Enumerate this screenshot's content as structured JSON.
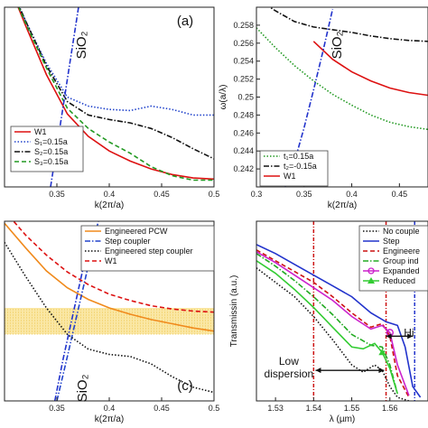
{
  "chart_data": [
    {
      "panel": "a",
      "type": "line",
      "tag": "(a)",
      "xlabel": "k(2π/a)",
      "ylabel": "",
      "xlim": [
        0.3,
        0.5
      ],
      "ylim": [
        0.243,
        0.259
      ],
      "xticks": [
        "0.35",
        "0.4",
        "0.45",
        "0.5"
      ],
      "yticks": [],
      "legend_position": "lower-left",
      "annotations": [
        {
          "text": "SiO₂",
          "x": 0.357,
          "y": 0.2552
        }
      ],
      "series": [
        {
          "name": "W1",
          "color": "#dd1111",
          "dash": "solid",
          "x": [
            0.3,
            0.32,
            0.34,
            0.36,
            0.38,
            0.4,
            0.42,
            0.44,
            0.46,
            0.48,
            0.5
          ],
          "y": [
            0.262,
            0.2574,
            0.253,
            0.2495,
            0.2475,
            0.2462,
            0.2453,
            0.2446,
            0.2441,
            0.2438,
            0.2437
          ]
        },
        {
          "name": "S₁=0.15a",
          "color": "#2244cc",
          "dash": "dotted",
          "x": [
            0.3,
            0.32,
            0.34,
            0.36,
            0.38,
            0.4,
            0.42,
            0.44,
            0.46,
            0.48,
            0.5
          ],
          "y": [
            0.262,
            0.2578,
            0.254,
            0.251,
            0.2502,
            0.2499,
            0.2498,
            0.2502,
            0.2499,
            0.2494,
            0.2494
          ]
        },
        {
          "name": "S₂=0.15a",
          "color": "#111111",
          "dash": "dashdot",
          "x": [
            0.3,
            0.32,
            0.34,
            0.36,
            0.38,
            0.4,
            0.42,
            0.44,
            0.46,
            0.48,
            0.5
          ],
          "y": [
            0.262,
            0.2578,
            0.2538,
            0.2506,
            0.2494,
            0.249,
            0.2487,
            0.2482,
            0.2474,
            0.2464,
            0.2455
          ]
        },
        {
          "name": "S₃=0.15a",
          "color": "#229922",
          "dash": "dashed",
          "x": [
            0.3,
            0.32,
            0.34,
            0.36,
            0.38,
            0.4,
            0.42,
            0.44,
            0.46,
            0.48,
            0.5
          ],
          "y": [
            0.262,
            0.2576,
            0.2536,
            0.25,
            0.2482,
            0.247,
            0.246,
            0.2448,
            0.244,
            0.2436,
            0.2436
          ]
        },
        {
          "name": "",
          "color": "#2233cc",
          "dash": "dashdot",
          "x": [
            0.344,
            0.35,
            0.356,
            0.362,
            0.368,
            0.374
          ],
          "y": [
            0.243,
            0.2466,
            0.2502,
            0.2538,
            0.2574,
            0.261
          ]
        }
      ]
    },
    {
      "panel": "b",
      "type": "line",
      "tag": "",
      "xlabel": "k(2π/a)",
      "ylabel": "ω(a/λ)",
      "xlim": [
        0.3,
        0.48
      ],
      "ylim": [
        0.24,
        0.26
      ],
      "xticks": [
        "0.3",
        "0.35",
        "0.4",
        "0.45"
      ],
      "yticks": [
        "0.242",
        "0.244",
        "0.246",
        "0.248",
        "0.25",
        "0.252",
        "0.254",
        "0.256",
        "0.258"
      ],
      "legend_position": "lower-left",
      "annotations": [
        {
          "text": "SiO₂",
          "x": 0.356,
          "y": 0.2565
        }
      ],
      "series": [
        {
          "name": "t₁=0.15a",
          "color": "#229922",
          "dash": "dotted",
          "x": [
            0.3,
            0.32,
            0.34,
            0.36,
            0.38,
            0.4,
            0.42,
            0.44,
            0.46,
            0.48
          ],
          "y": [
            0.2577,
            0.2555,
            0.2535,
            0.2518,
            0.2503,
            0.2491,
            0.248,
            0.2472,
            0.2467,
            0.2464
          ]
        },
        {
          "name": "t₂=-0.15a",
          "color": "#111111",
          "dash": "dashdot",
          "x": [
            0.3,
            0.32,
            0.34,
            0.36,
            0.38,
            0.4,
            0.42,
            0.44,
            0.46,
            0.48
          ],
          "y": [
            0.261,
            0.2596,
            0.2584,
            0.2578,
            0.2575,
            0.2572,
            0.2568,
            0.2565,
            0.2563,
            0.2562
          ]
        },
        {
          "name": "W1",
          "color": "#dd1111",
          "dash": "solid",
          "x": [
            0.36,
            0.38,
            0.4,
            0.42,
            0.44,
            0.46,
            0.48
          ],
          "y": [
            0.2562,
            0.2542,
            0.2528,
            0.2518,
            0.251,
            0.2505,
            0.2502
          ]
        },
        {
          "name": "",
          "color": "#2233cc",
          "dash": "dashdot",
          "x": [
            0.33,
            0.34,
            0.35,
            0.36,
            0.37,
            0.38
          ],
          "y": [
            0.24,
            0.2428,
            0.2466,
            0.2508,
            0.2552,
            0.2598
          ]
        }
      ]
    },
    {
      "panel": "c",
      "type": "line",
      "tag": "(c)",
      "xlabel": "k(2π/a)",
      "ylabel": "",
      "xlim": [
        0.3,
        0.5
      ],
      "ylim": [
        0.243,
        0.26
      ],
      "xticks": [
        "0.35",
        "0.4",
        "0.45",
        "0.5"
      ],
      "yticks": [],
      "legend_position": "top-right",
      "band": {
        "ymin": 0.2493,
        "ymax": 0.2518,
        "color": "#f5d35a"
      },
      "annotations": [
        {
          "text": "SiO₂",
          "x": 0.362,
          "y": 0.2445
        }
      ],
      "series": [
        {
          "name": "Engineered PCW",
          "color": "#f08a1c",
          "dash": "solid",
          "x": [
            0.3,
            0.32,
            0.34,
            0.36,
            0.38,
            0.4,
            0.42,
            0.44,
            0.46,
            0.48,
            0.5
          ],
          "y": [
            0.2598,
            0.2575,
            0.2553,
            0.2537,
            0.2526,
            0.2518,
            0.2512,
            0.2507,
            0.2503,
            0.2499,
            0.2496
          ]
        },
        {
          "name": "Step coupler",
          "color": "#2244cc",
          "dash": "dashdot",
          "x": [
            0.35,
            0.36,
            0.37,
            0.38,
            0.39
          ],
          "y": [
            0.243,
            0.2472,
            0.2515,
            0.2558,
            0.2602
          ]
        },
        {
          "name": "Engineered step coupler",
          "color": "#111111",
          "dash": "dotted",
          "x": [
            0.3,
            0.32,
            0.34,
            0.36,
            0.38,
            0.4,
            0.42,
            0.44,
            0.46,
            0.48,
            0.5
          ],
          "y": [
            0.258,
            0.2548,
            0.2518,
            0.2493,
            0.2479,
            0.2474,
            0.2472,
            0.2465,
            0.2453,
            0.2443,
            0.2438
          ]
        },
        {
          "name": "W1",
          "color": "#dd1111",
          "dash": "dashed",
          "x": [
            0.3,
            0.32,
            0.34,
            0.36,
            0.38,
            0.4,
            0.42,
            0.44,
            0.46,
            0.48,
            0.5
          ],
          "y": [
            0.261,
            0.2587,
            0.2568,
            0.2552,
            0.254,
            0.2531,
            0.2525,
            0.252,
            0.2517,
            0.2515,
            0.2514
          ]
        },
        {
          "name": "",
          "color": "#2233cc",
          "dash": "dashdot",
          "x": [
            0.348,
            0.356,
            0.366,
            0.376
          ],
          "y": [
            0.243,
            0.247,
            0.2515,
            0.256
          ]
        }
      ]
    },
    {
      "panel": "d",
      "type": "line",
      "tag": "",
      "xlabel": "λ (µm)",
      "ylabel": "Transmissin (a.u.)",
      "xlim": [
        1.525,
        1.57
      ],
      "ylim": [
        0,
        1
      ],
      "xticks": [
        "1.53",
        "1.54",
        "1.55",
        "1.56"
      ],
      "yticks": [],
      "legend_position": "top-right",
      "vlines": [
        {
          "x": 1.54,
          "color": "#cc1111"
        },
        {
          "x": 1.559,
          "color": "#cc1111"
        },
        {
          "x": 1.5665,
          "color": "#2233cc"
        }
      ],
      "annotations": [
        {
          "text": "Low",
          "x": 1.5335,
          "y": 0.2
        },
        {
          "text": "dispersion",
          "x": 1.5335,
          "y": 0.13
        },
        {
          "text": "Hi",
          "x": 1.565,
          "y": 0.36
        }
      ],
      "arrows": [
        {
          "x1": 1.5405,
          "x2": 1.5585,
          "y": 0.17
        },
        {
          "x1": 1.559,
          "x2": 1.566,
          "y": 0.36
        }
      ],
      "series": [
        {
          "name": "No couple",
          "color": "#111111",
          "dash": "dotted",
          "x": [
            1.525,
            1.53,
            1.535,
            1.54,
            1.545,
            1.55,
            1.553,
            1.556,
            1.558,
            1.56,
            1.562,
            1.565
          ],
          "y": [
            0.74,
            0.66,
            0.58,
            0.47,
            0.34,
            0.2,
            0.16,
            0.2,
            0.17,
            0.08,
            0.02,
            0.0
          ]
        },
        {
          "name": "Step",
          "color": "#2233cc",
          "dash": "solid",
          "x": [
            1.525,
            1.53,
            1.535,
            1.54,
            1.545,
            1.55,
            1.555,
            1.559,
            1.562,
            1.564,
            1.566,
            1.568
          ],
          "y": [
            0.87,
            0.82,
            0.76,
            0.7,
            0.64,
            0.58,
            0.49,
            0.44,
            0.42,
            0.3,
            0.08,
            0.02
          ]
        },
        {
          "name": "Engineere",
          "color": "#cc1111",
          "dash": "dashed",
          "x": [
            1.525,
            1.53,
            1.535,
            1.54,
            1.545,
            1.55,
            1.555,
            1.558,
            1.56,
            1.562,
            1.565
          ],
          "y": [
            0.84,
            0.78,
            0.72,
            0.66,
            0.58,
            0.49,
            0.41,
            0.43,
            0.36,
            0.14,
            0.02
          ]
        },
        {
          "name": "Group ind",
          "color": "#22aa22",
          "dash": "dashdot",
          "x": [
            1.525,
            1.53,
            1.535,
            1.54,
            1.545,
            1.55,
            1.555,
            1.558,
            1.56,
            1.562
          ],
          "y": [
            0.82,
            0.75,
            0.67,
            0.58,
            0.48,
            0.37,
            0.31,
            0.3,
            0.2,
            0.04
          ]
        },
        {
          "name": "Expanded",
          "color": "#cc22cc",
          "dash": "solid",
          "marker": "circle",
          "x": [
            1.525,
            1.53,
            1.535,
            1.54,
            1.545,
            1.55,
            1.555,
            1.558,
            1.56,
            1.562,
            1.565
          ],
          "y": [
            0.83,
            0.77,
            0.7,
            0.63,
            0.56,
            0.47,
            0.4,
            0.42,
            0.38,
            0.2,
            0.03
          ]
        },
        {
          "name": "Reduced",
          "color": "#33cc33",
          "dash": "solid",
          "marker": "triangle",
          "x": [
            1.525,
            1.53,
            1.535,
            1.54,
            1.545,
            1.55,
            1.553,
            1.556,
            1.558,
            1.56,
            1.562
          ],
          "y": [
            0.78,
            0.71,
            0.62,
            0.52,
            0.41,
            0.3,
            0.29,
            0.32,
            0.27,
            0.18,
            0.04
          ]
        }
      ]
    }
  ]
}
